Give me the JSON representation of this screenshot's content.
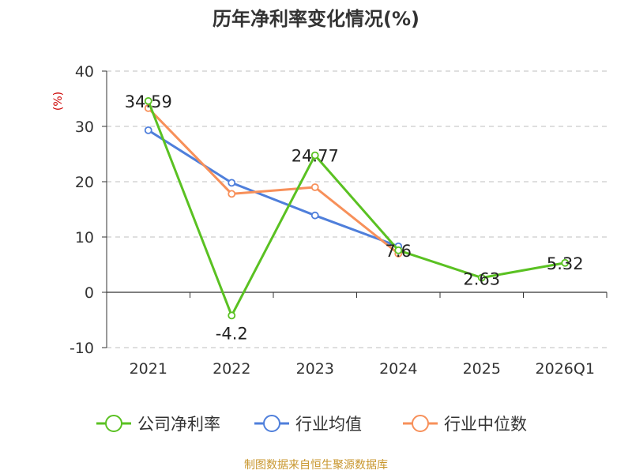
{
  "chart_data": {
    "type": "line",
    "title": "历年净利率变化情况(%)",
    "ylabel": "(%)",
    "categories": [
      "2021",
      "2022",
      "2023",
      "2024",
      "2025",
      "2026Q1"
    ],
    "ylim": [
      -10,
      40
    ],
    "yticks": [
      "40",
      "30",
      "20",
      "10",
      "0",
      "-10"
    ],
    "grid": true,
    "series": [
      {
        "name": "公司净利率",
        "color": "#5ac122",
        "values": [
          34.59,
          -4.2,
          24.77,
          7.6,
          2.63,
          5.32
        ],
        "labels": [
          "34.59",
          "-4.2",
          "24.77",
          "7.6",
          "2.63",
          "5.32"
        ]
      },
      {
        "name": "行业均值",
        "color": "#4f7fdb",
        "values": [
          29.3,
          19.8,
          13.9,
          8.3,
          null,
          null
        ]
      },
      {
        "name": "行业中位数",
        "color": "#f7905a",
        "values": [
          33.3,
          17.8,
          19.0,
          7.0,
          null,
          null
        ]
      }
    ],
    "legend_position": "bottom",
    "source": "制图数据来自恒生聚源数据库"
  },
  "colors": {
    "unit_label": "#cc0000",
    "source_text": "#c8962d",
    "grid": "#cccccc",
    "axis": "#333333"
  }
}
